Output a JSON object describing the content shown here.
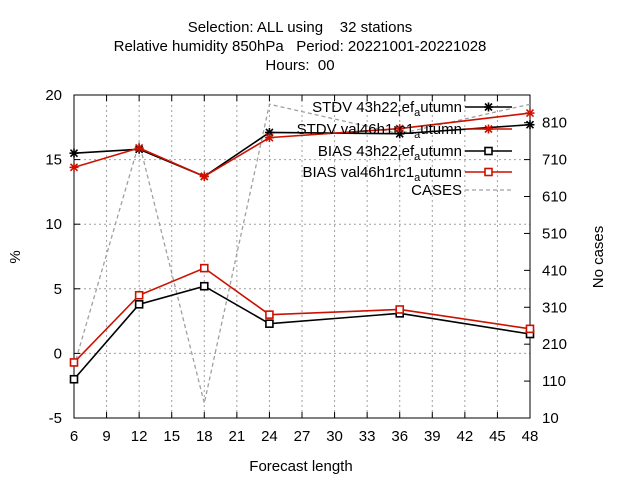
{
  "title_lines": [
    "Selection: ALL using    32 stations",
    "Relative humidity 850hPa   Period: 20221001-20221028",
    "Hours:  00"
  ],
  "chart_data": {
    "type": "line",
    "xlabel": "Forecast length",
    "ylabel": "%",
    "y2label": "No cases",
    "xlim": [
      6,
      48
    ],
    "ylim": [
      -5,
      20
    ],
    "y2lim": [
      10,
      885
    ],
    "xticks": [
      "6",
      "9",
      "12",
      "15",
      "18",
      "21",
      "24",
      "27",
      "30",
      "33",
      "36",
      "39",
      "42",
      "45",
      "48"
    ],
    "yticks": [
      "-5",
      "0",
      "5",
      "10",
      "15",
      "20"
    ],
    "y2ticks": [
      "10",
      "110",
      "210",
      "310",
      "410",
      "510",
      "610",
      "710",
      "810"
    ],
    "grid": true,
    "legend_position": "top-right",
    "series": [
      {
        "name": "STDV 43h22_ref_autumn",
        "legend_label": "STDV 43h22",
        "legend_sub": "ref",
        "legend_mid": "ef",
        "legend_sub2": "a",
        "legend_end": "utumn",
        "color": "#000000",
        "marker": "star",
        "axis": "y",
        "x": [
          6,
          12,
          18,
          24,
          36,
          48
        ],
        "y": [
          15.5,
          15.8,
          13.7,
          17.1,
          17.0,
          17.7
        ]
      },
      {
        "name": "STDV val46h1rc1_autumn",
        "color": "#cc1100",
        "marker": "star",
        "axis": "y",
        "x": [
          6,
          12,
          18,
          24,
          36,
          48
        ],
        "y": [
          14.4,
          15.9,
          13.7,
          16.7,
          17.4,
          18.6
        ]
      },
      {
        "name": "BIAS 43h22_ref_autumn",
        "color": "#000000",
        "marker": "square",
        "axis": "y",
        "x": [
          6,
          12,
          18,
          24,
          36,
          48
        ],
        "y": [
          -2.0,
          3.8,
          5.2,
          2.3,
          3.1,
          1.5
        ]
      },
      {
        "name": "BIAS val46h1rc1_autumn",
        "color": "#cc1100",
        "marker": "square",
        "axis": "y",
        "x": [
          6,
          12,
          18,
          24,
          36,
          48
        ],
        "y": [
          -0.7,
          4.5,
          6.6,
          3.0,
          3.4,
          1.9
        ]
      },
      {
        "name": "CASES",
        "color": "#a0a0a0",
        "marker": "none",
        "dashed": true,
        "axis": "y2",
        "x": [
          6,
          12,
          18,
          24,
          36,
          48
        ],
        "y": [
          150,
          756,
          50,
          860,
          780,
          860
        ]
      }
    ],
    "legend": [
      {
        "pre": "STDV 43h22",
        "sub1": "r",
        "mid": "ef",
        "sub2": "a",
        "post": "utumn"
      },
      {
        "pre": "STDV val46h1rc1",
        "sub1": "",
        "mid": "",
        "sub2": "a",
        "post": "utumn"
      },
      {
        "pre": "BIAS 43h22",
        "sub1": "r",
        "mid": "ef",
        "sub2": "a",
        "post": "utumn"
      },
      {
        "pre": "BIAS val46h1rc1",
        "sub1": "",
        "mid": "",
        "sub2": "a",
        "post": "utumn"
      },
      {
        "pre": "CASES",
        "sub1": "",
        "mid": "",
        "sub2": "",
        "post": ""
      }
    ]
  }
}
